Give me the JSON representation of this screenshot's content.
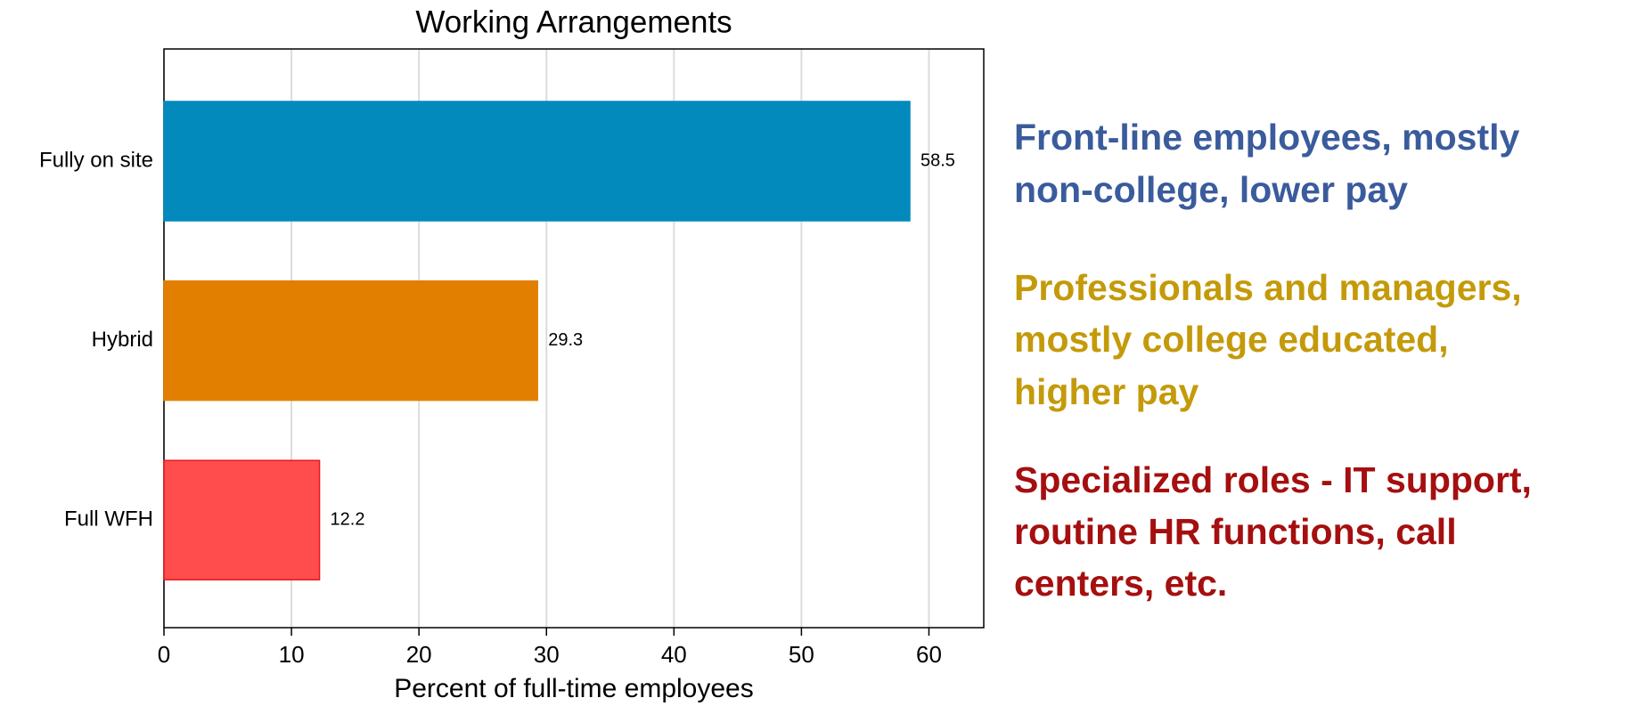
{
  "chart_data": {
    "type": "bar",
    "orientation": "horizontal",
    "title": "Working Arrangements",
    "xlabel": "Percent of full-time employees",
    "categories": [
      "Fully on site",
      "Hybrid",
      "Full WFH"
    ],
    "values": [
      58.5,
      29.3,
      12.2
    ],
    "colors": [
      "#038abd",
      "#e37f00",
      "#ff4d4d"
    ],
    "xlim": [
      0,
      64.3
    ],
    "xticks": [
      0,
      10,
      20,
      30,
      40,
      50,
      60
    ],
    "grid": true,
    "annotations": [
      {
        "lines": [
          "Front-line employees, mostly",
          "non-college, lower pay"
        ],
        "color": "#3a5b9c"
      },
      {
        "lines": [
          "Professionals and managers,",
          "mostly college educated,",
          "higher pay"
        ],
        "color": "#c49a0a"
      },
      {
        "lines": [
          "Specialized roles - IT support,",
          "routine HR functions, call",
          "centers, etc."
        ],
        "color": "#a50f0f"
      }
    ]
  }
}
